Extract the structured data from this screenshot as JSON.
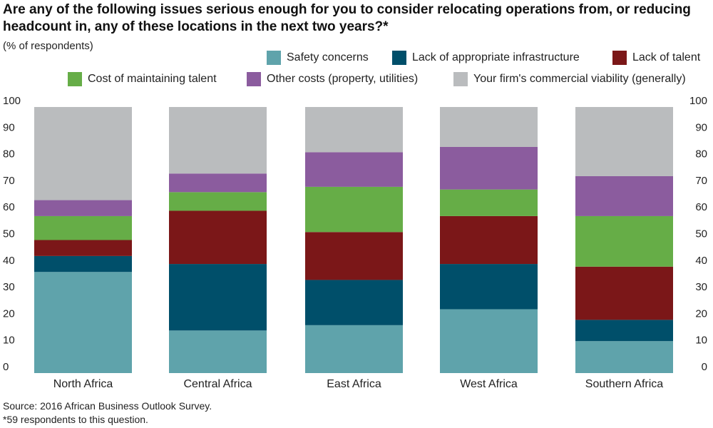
{
  "chart_data": {
    "type": "bar",
    "stacked": true,
    "title": "Are any of the following issues serious enough for you to consider relocating operations from, or reducing headcount in, any of these locations in the next two years?*",
    "subtitle": "(% of respondents)",
    "categories": [
      "North Africa",
      "Central Africa",
      "East Africa",
      "West Africa",
      "Southern Africa"
    ],
    "series": [
      {
        "name": "Safety concerns",
        "color": "#5fa3ab",
        "values": [
          38,
          16,
          18,
          24,
          12
        ]
      },
      {
        "name": "Lack of appropriate infrastructure",
        "color": "#004f6a",
        "values": [
          6,
          25,
          17,
          17,
          8
        ]
      },
      {
        "name": "Lack of talent",
        "color": "#7b1718",
        "values": [
          6,
          20,
          18,
          18,
          20
        ]
      },
      {
        "name": "Cost of maintaining talent",
        "color": "#66ad47",
        "values": [
          9,
          7,
          17,
          10,
          19
        ]
      },
      {
        "name": "Other costs (property, utilities)",
        "color": "#8b5c9e",
        "values": [
          6,
          7,
          13,
          16,
          15
        ]
      },
      {
        "name": "Your firm's commercial viability (generally)",
        "color": "#babcbe",
        "values": [
          35,
          25,
          17,
          15,
          26
        ]
      }
    ],
    "yticks": [
      "100",
      "90",
      "80",
      "70",
      "60",
      "50",
      "40",
      "30",
      "20",
      "10",
      "0"
    ],
    "ylim": [
      0,
      100
    ],
    "xlabel": "",
    "ylabel": "",
    "legend_position": "top"
  },
  "footer": {
    "source": "Source: 2016 African Business Outlook Survey.",
    "note": "*59 respondents to this question."
  }
}
